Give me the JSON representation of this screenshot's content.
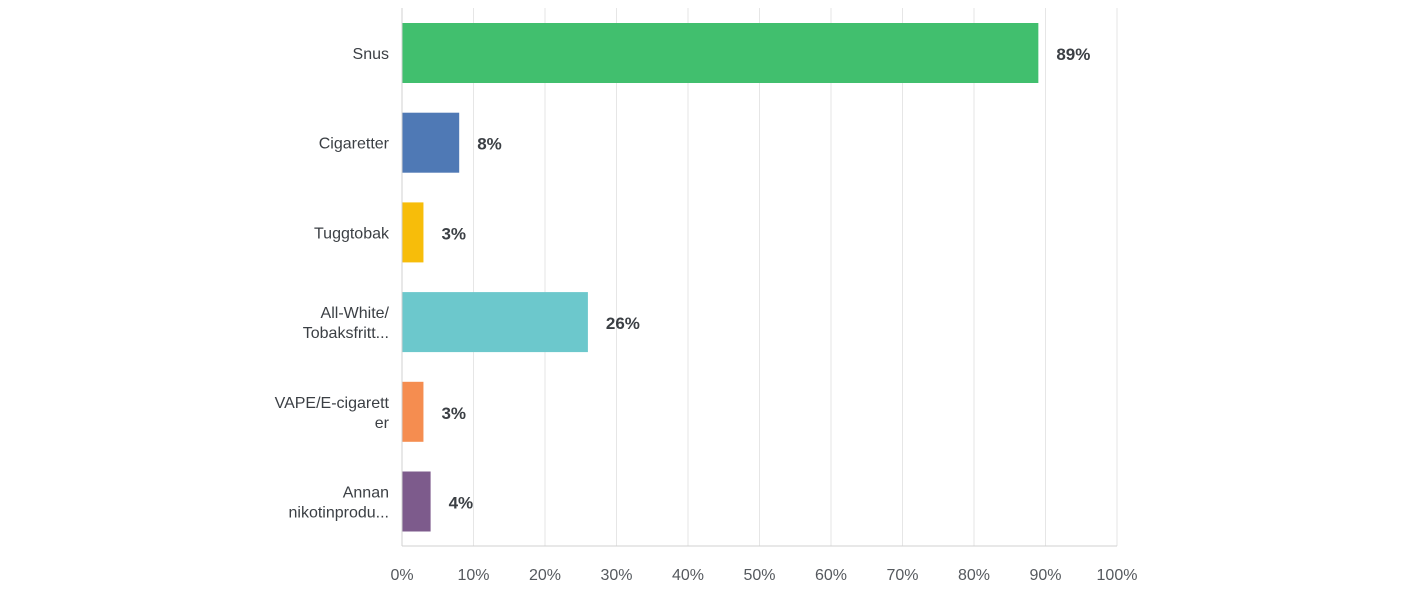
{
  "chart_data": {
    "type": "bar",
    "orientation": "horizontal",
    "categories": [
      [
        "Snus"
      ],
      [
        "Cigaretter"
      ],
      [
        "Tuggtobak"
      ],
      [
        "All-White/",
        "Tobaksfritt..."
      ],
      [
        "VAPE/E-cigarett",
        "er"
      ],
      [
        "Annan",
        "nikotinprodu..."
      ]
    ],
    "values": [
      89,
      8,
      3,
      26,
      3,
      4
    ],
    "value_labels": [
      "89%",
      "8%",
      "3%",
      "26%",
      "3%",
      "4%"
    ],
    "bar_colors": [
      "#41bf6e",
      "#4f79b5",
      "#f7bd0a",
      "#6cc8cc",
      "#f58d50",
      "#7d5b8c"
    ],
    "xlim": [
      0,
      100
    ],
    "x_ticks": [
      0,
      10,
      20,
      30,
      40,
      50,
      60,
      70,
      80,
      90,
      100
    ],
    "x_tick_labels": [
      "0%",
      "10%",
      "20%",
      "30%",
      "40%",
      "50%",
      "60%",
      "70%",
      "80%",
      "90%",
      "100%"
    ],
    "grid": true,
    "title": "",
    "xlabel": "",
    "ylabel": ""
  }
}
